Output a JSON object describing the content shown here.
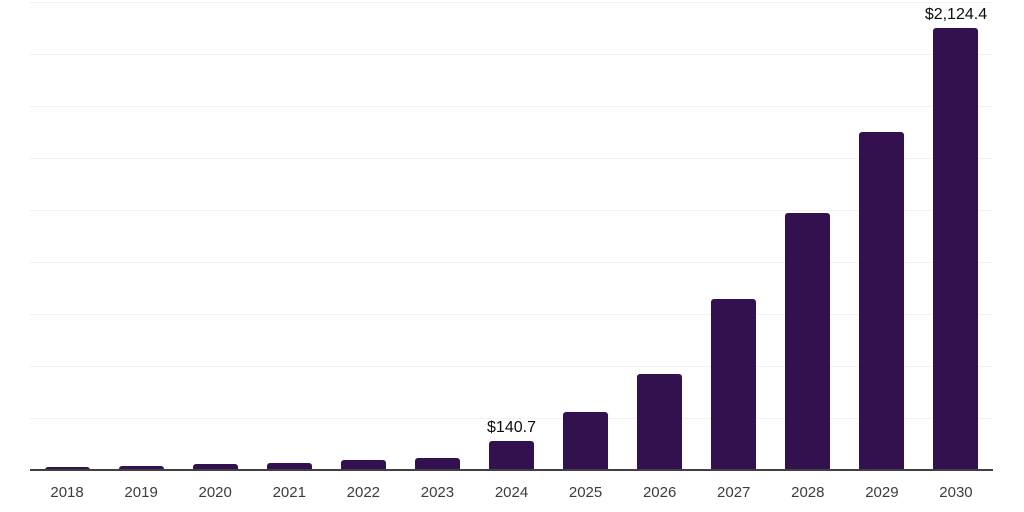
{
  "chart_data": {
    "type": "bar",
    "title": "",
    "xlabel": "",
    "ylabel": "",
    "categories": [
      "2018",
      "2019",
      "2020",
      "2021",
      "2022",
      "2023",
      "2024",
      "2025",
      "2026",
      "2027",
      "2028",
      "2029",
      "2030"
    ],
    "values": [
      15,
      21,
      27,
      36,
      46,
      59,
      140.7,
      278,
      460,
      821,
      1236,
      1626,
      2124.4
    ],
    "data_labels": [
      {
        "category": "2024",
        "text": "$140.7"
      },
      {
        "category": "2030",
        "text": "$2,124.4"
      }
    ],
    "ylim": [
      0,
      2250
    ],
    "gridline_step": 250,
    "grid": true,
    "y_tick_labels_visible": false,
    "legend": "none",
    "colors": {
      "bar": "#33114E",
      "axis_line": "#404040",
      "gridline": "#f2f2f2",
      "data_label_text": "#0d0d0d",
      "x_tick_label_text": "#3c3c3c",
      "background": "#ffffff"
    }
  }
}
